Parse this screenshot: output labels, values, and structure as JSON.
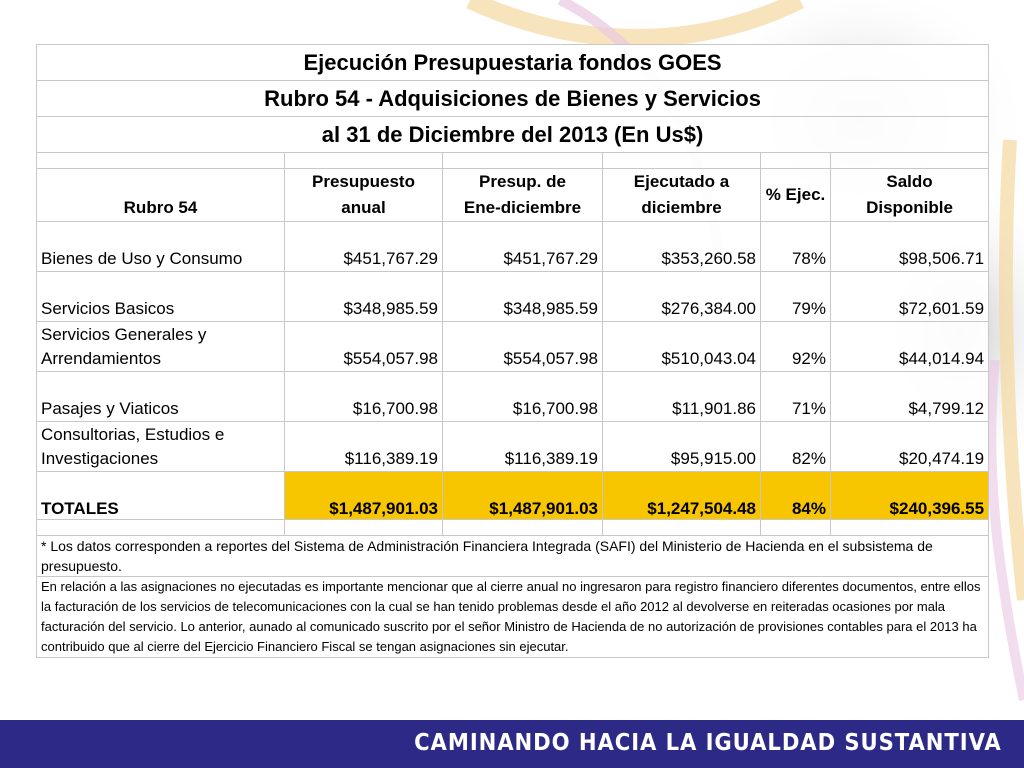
{
  "title": {
    "line1": "Ejecución Presupuestaria fondos GOES",
    "line2": "Rubro 54 - Adquisiciones de Bienes y Servicios",
    "line3": "al 31 de Diciembre  del 2013 (En Us$)"
  },
  "table": {
    "headers": {
      "rubro": "Rubro 54",
      "presupuesto_l1": "Presupuesto",
      "presupuesto_l2": "anual",
      "presup_l1": "Presup. de",
      "presup_l2": "Ene-diciembre",
      "ejecutado_l1": "Ejecutado a",
      "ejecutado_l2": "diciembre",
      "pct": "% Ejec.",
      "saldo_l1": "Saldo",
      "saldo_l2": "Disponible"
    },
    "rows": [
      {
        "name_l1": "",
        "name_l2": "Bienes de Uso y Consumo",
        "anual": "$451,767.29",
        "ene_dic": "$451,767.29",
        "ejecutado": "$353,260.58",
        "pct": "78%",
        "saldo": "$98,506.71"
      },
      {
        "name_l1": "",
        "name_l2": "Servicios Basicos",
        "anual": "$348,985.59",
        "ene_dic": "$348,985.59",
        "ejecutado": "$276,384.00",
        "pct": "79%",
        "saldo": "$72,601.59"
      },
      {
        "name_l1": "Servicios Generales y",
        "name_l2": "Arrendamientos",
        "anual": "$554,057.98",
        "ene_dic": "$554,057.98",
        "ejecutado": "$510,043.04",
        "pct": "92%",
        "saldo": "$44,014.94"
      },
      {
        "name_l1": "",
        "name_l2": "Pasajes y Viaticos",
        "anual": "$16,700.98",
        "ene_dic": "$16,700.98",
        "ejecutado": "$11,901.86",
        "pct": "71%",
        "saldo": "$4,799.12"
      },
      {
        "name_l1": "Consultorias, Estudios e",
        "name_l2": "Investigaciones",
        "anual": "$116,389.19",
        "ene_dic": "$116,389.19",
        "ejecutado": "$95,915.00",
        "pct": "82%",
        "saldo": "$20,474.19"
      }
    ],
    "totals": {
      "label": "TOTALES",
      "anual": "$1,487,901.03",
      "ene_dic": "$1,487,901.03",
      "ejecutado": "$1,247,504.48",
      "pct": "84%",
      "saldo": "$240,396.55"
    }
  },
  "notes": {
    "note1": "*  Los datos corresponden a reportes del Sistema de Administración Financiera Integrada (SAFI) del Ministerio de Hacienda en el subsistema de presupuesto.",
    "note2": "En relación a las asignaciones no ejecutadas es importante mencionar que al cierre anual no ingresaron para registro financiero diferentes documentos, entre ellos la facturación de los servicios de telecomunicaciones con la cual se han tenido problemas desde el año 2012 al devolverse en reiteradas ocasiones por mala facturación  del servicio.   Lo anterior, aunado al comunicado suscrito por el señor Ministro de Hacienda de no autorización de provisiones contables para el 2013 ha contribuido que al cierre del Ejercicio Financiero Fiscal se tengan asignaciones sin ejecutar."
  },
  "footer": {
    "slogan": "CAMINANDO HACIA LA IGUALDAD SUSTANTIVA"
  },
  "colors": {
    "highlight": "#f7c600",
    "footer_bar": "#2d2a87"
  }
}
